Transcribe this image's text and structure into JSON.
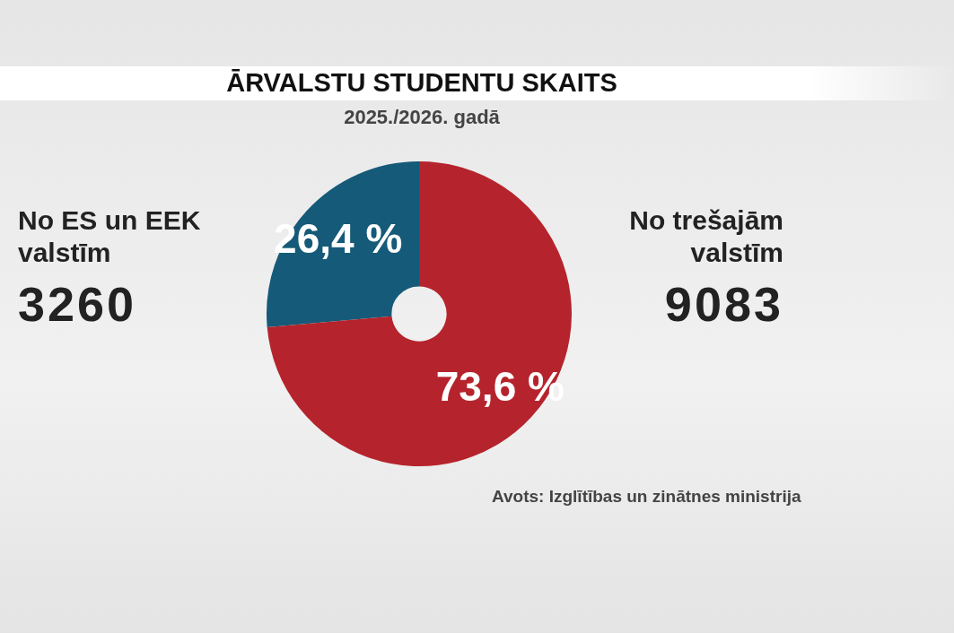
{
  "chart_data": {
    "type": "donut",
    "title": "ĀRVALSTU STUDENTU SKAITS",
    "subtitle": "2025./2026. gadā",
    "categories": [
      "No ES un EEK valstīm",
      "No trešajām valstīm"
    ],
    "values": [
      3260,
      9083
    ],
    "colors": [
      "#155a78",
      "#b5242c"
    ],
    "data_labels": true,
    "annotations": [
      {
        "text": "26,4 %",
        "x": "No ES un EEK valstīm"
      },
      {
        "text": "73,6 %",
        "x": "No trešajām valstīm"
      },
      "Avots: Izglītības un zinātnes ministrija"
    ],
    "legend": false
  }
}
